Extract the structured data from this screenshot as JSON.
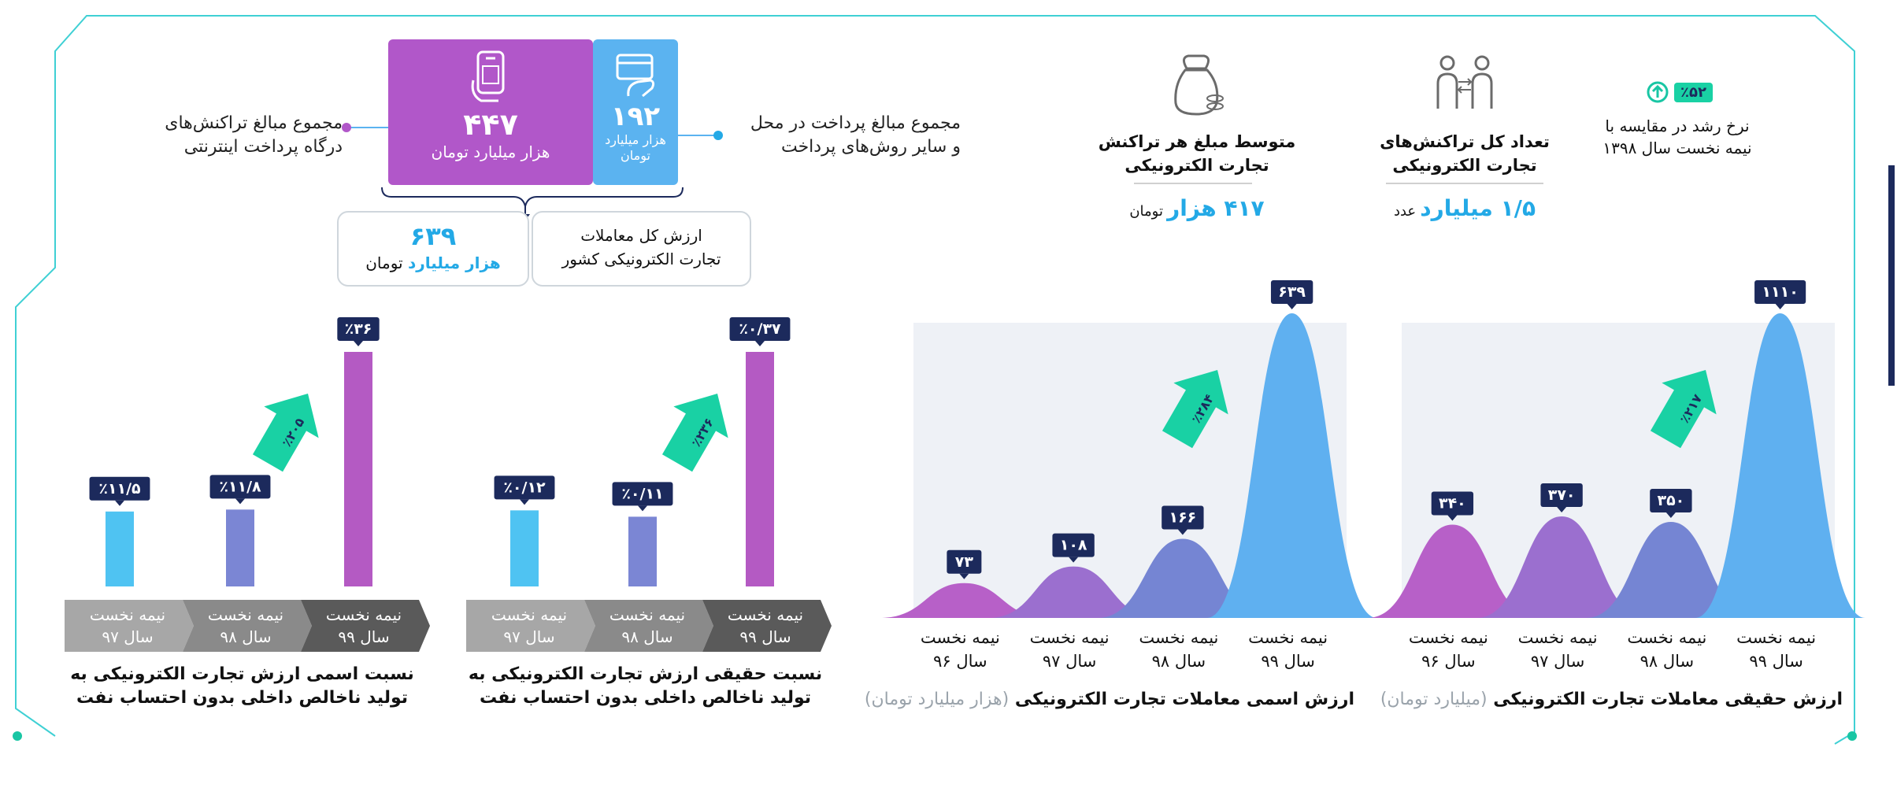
{
  "colors": {
    "cyan": "#23A9E6",
    "navy": "#1C2A5C",
    "teal": "#19D1A4",
    "purple": "#B45AC3",
    "blue_card": "#5BB3F0",
    "purple_card": "#B157C9",
    "gray_dark": "#5a5a5a",
    "gray_light": "#9a9a9a",
    "frame": "#3FD0D4"
  },
  "icons": {
    "phone": "mobile-hand-icon",
    "card": "card-hand-icon",
    "moneybag": "money-bag-icon",
    "people": "people-exchange-icon",
    "growth": "arrow-up-circle-icon"
  },
  "header": {
    "purple_card": {
      "value": "۴۴۷",
      "unit": "هزار میلیارد تومان"
    },
    "blue_card": {
      "value": "۱۹۲",
      "unit_line1": "هزار میلیارد",
      "unit_line2": "تومان"
    },
    "left_note": {
      "line1": "مجموع مبالغ تراکنش‌های",
      "line2": "درگاه پرداخت اینترنتی"
    },
    "right_note": {
      "line1": "مجموع مبالغ پرداخت در محل",
      "line2": "و سایر روش‌های پرداخت"
    },
    "total_box": {
      "value": "۶۳۹",
      "unit_colored": "هزار میلیارد",
      "unit_tail": "تومان"
    },
    "total_label": {
      "line1": "ارزش کل معاملات",
      "line2": "تجارت الکترونیکی کشور"
    }
  },
  "kpis": {
    "avg": {
      "title_line1": "متوسط مبلغ هر تراکنش",
      "title_line2": "تجارت الکترونیکی",
      "value": "۴۱۷ هزار",
      "unit": "تومان"
    },
    "count": {
      "title_line1": "تعداد کل تراکنش‌های",
      "title_line2": "تجارت الکترونیکی",
      "value": "۱/۵ میلیارد",
      "unit": "عدد"
    },
    "growth": {
      "badge": "٪۵۲",
      "line1": "نرخ رشد در مقایسه با",
      "line2": "نیمه نخست سال ۱۳۹۸"
    }
  },
  "ribbon_labels": [
    {
      "line1": "نیمه نخست",
      "line2": "سال ۹۹"
    },
    {
      "line1": "نیمه نخست",
      "line2": "سال ۹۸"
    },
    {
      "line1": "نیمه نخست",
      "line2": "سال ۹۷"
    }
  ],
  "bell_labels": [
    {
      "line1": "نیمه نخست",
      "line2": "سال ۹۹"
    },
    {
      "line1": "نیمه نخست",
      "line2": "سال ۹۸"
    },
    {
      "line1": "نیمه نخست",
      "line2": "سال ۹۷"
    },
    {
      "line1": "نیمه نخست",
      "line2": "سال ۹۶"
    }
  ],
  "chart_data": [
    {
      "type": "bar",
      "title": "نسبت اسمی ارزش تجارت الکترونیکی به تولید ناخالص داخلی بدون احتساب نفت",
      "categories": [
        "نیمه نخست سال ۹۷",
        "نیمه نخست سال ۹۸",
        "نیمه نخست سال ۹۹"
      ],
      "values": [
        11.5,
        11.8,
        36
      ],
      "labels": [
        "٪۱۱/۵",
        "٪۱۱/۸",
        "٪۳۶"
      ],
      "growth_label": "٪۲۰۵",
      "ylim": [
        0,
        40
      ]
    },
    {
      "type": "bar",
      "title": "نسبت حقیقی ارزش تجارت الکترونیکی به تولید ناخالص داخلی بدون احتساب نفت",
      "categories": [
        "نیمه نخست سال ۹۷",
        "نیمه نخست سال ۹۸",
        "نیمه نخست سال ۹۹"
      ],
      "values": [
        0.12,
        0.11,
        0.37
      ],
      "labels": [
        "٪۰/۱۲",
        "٪۰/۱۱",
        "٪۰/۳۷"
      ],
      "growth_label": "٪۲۳۶",
      "ylim": [
        0,
        0.4
      ]
    },
    {
      "type": "area",
      "title": "ارزش اسمی معاملات تجارت الکترونیکی",
      "unit_label": "(هزار میلیارد تومان)",
      "categories": [
        "نیمه نخست سال ۹۶",
        "نیمه نخست سال ۹۷",
        "نیمه نخست سال ۹۸",
        "نیمه نخست سال ۹۹"
      ],
      "values": [
        73,
        108,
        166,
        639
      ],
      "labels": [
        "۷۳",
        "۱۰۸",
        "۱۶۶",
        "۶۳۹"
      ],
      "growth_label": "٪۲۸۴",
      "ylim": [
        0,
        680
      ]
    },
    {
      "type": "area",
      "title": "ارزش حقیقی معاملات تجارت الکترونیکی",
      "unit_label": "(میلیارد تومان)",
      "categories": [
        "نیمه نخست سال ۹۶",
        "نیمه نخست سال ۹۷",
        "نیمه نخست سال ۹۸",
        "نیمه نخست سال ۹۹"
      ],
      "values": [
        340,
        370,
        350,
        1110
      ],
      "labels": [
        "۳۴۰",
        "۳۷۰",
        "۳۵۰",
        "۱۱۱۰"
      ],
      "growth_label": "٪۲۱۷",
      "ylim": [
        0,
        1180
      ]
    }
  ]
}
